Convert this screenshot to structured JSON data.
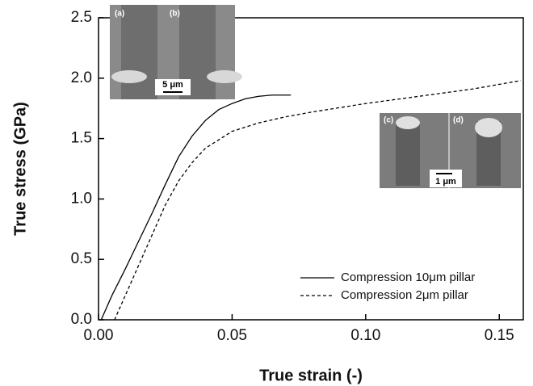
{
  "chart_data": {
    "type": "line",
    "x_label": "True strain (-)",
    "y_label": "True stress (GPa)",
    "xlim": [
      0,
      0.159
    ],
    "ylim": [
      0,
      2.5
    ],
    "xticks": [
      {
        "value": 0,
        "label": "0.00"
      },
      {
        "value": 0.05,
        "label": "0.05"
      },
      {
        "value": 0.1,
        "label": "0.10"
      },
      {
        "value": 0.15,
        "label": "0.15"
      }
    ],
    "yticks": [
      {
        "value": 0,
        "label": "0.0"
      },
      {
        "value": 0.5,
        "label": "0.5"
      },
      {
        "value": 1,
        "label": "1.0"
      },
      {
        "value": 1.5,
        "label": "1.5"
      },
      {
        "value": 2,
        "label": "2.0"
      },
      {
        "value": 2.5,
        "label": "2.5"
      }
    ],
    "legend": "lower right",
    "series": [
      {
        "name": "Compression 10μm pillar",
        "color": "#000000",
        "dash": "solid",
        "x": [
          0.001,
          0.005,
          0.01,
          0.015,
          0.02,
          0.025,
          0.03,
          0.035,
          0.04,
          0.045,
          0.05,
          0.055,
          0.06,
          0.065,
          0.072
        ],
        "values": [
          0,
          0.2,
          0.42,
          0.65,
          0.88,
          1.12,
          1.35,
          1.52,
          1.65,
          1.74,
          1.79,
          1.83,
          1.85,
          1.86,
          1.86
        ]
      },
      {
        "name": "Compression 2μm pillar",
        "color": "#000000",
        "dash": "dashed",
        "x": [
          0.006,
          0.01,
          0.015,
          0.02,
          0.025,
          0.03,
          0.035,
          0.04,
          0.05,
          0.06,
          0.07,
          0.08,
          0.1,
          0.12,
          0.14,
          0.158
        ],
        "values": [
          0,
          0.2,
          0.45,
          0.7,
          0.95,
          1.15,
          1.3,
          1.42,
          1.56,
          1.63,
          1.68,
          1.72,
          1.79,
          1.85,
          1.91,
          1.98
        ]
      }
    ],
    "annotations": [
      "(a)",
      "(b)",
      "5 μm",
      "(c)",
      "(d)",
      "1 μm"
    ]
  }
}
